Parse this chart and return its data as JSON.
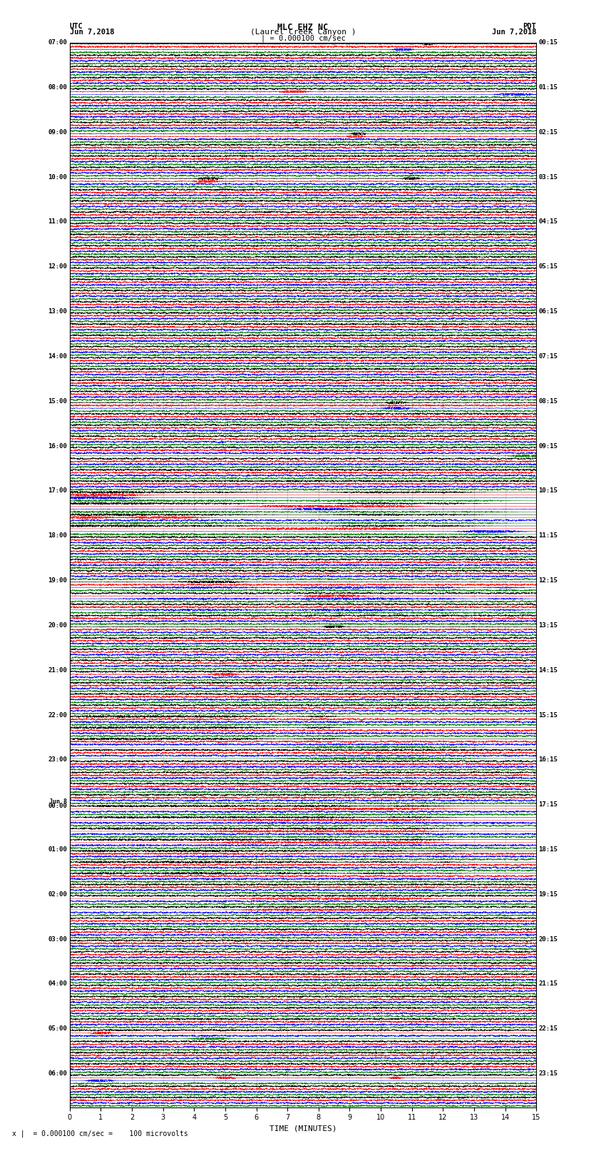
{
  "title_line1": "MLC EHZ NC",
  "title_line2": "(Laurel Creek Canyon )",
  "title_line3": "| = 0.000100 cm/sec",
  "left_label_top": "UTC",
  "left_label_date": "Jun 7,2018",
  "right_label_top": "PDT",
  "right_label_date": "Jun 7,2018",
  "bottom_label": "TIME (MINUTES)",
  "bottom_note": "x |  = 0.000100 cm/sec =    100 microvolts",
  "colors": [
    "black",
    "red",
    "blue",
    "green"
  ],
  "utc_labels": {
    "0": "07:00",
    "4": "08:00",
    "8": "09:00",
    "12": "10:00",
    "16": "11:00",
    "20": "12:00",
    "24": "13:00",
    "28": "14:00",
    "32": "15:00",
    "36": "16:00",
    "40": "17:00",
    "44": "18:00",
    "48": "19:00",
    "52": "20:00",
    "56": "21:00",
    "60": "22:00",
    "64": "23:00",
    "68": "Jun 8\n00:00",
    "72": "01:00",
    "76": "02:00",
    "80": "03:00",
    "84": "04:00",
    "88": "05:00",
    "92": "06:00"
  },
  "pdt_labels": {
    "0": "00:15",
    "4": "01:15",
    "8": "02:15",
    "12": "03:15",
    "16": "04:15",
    "20": "05:15",
    "24": "06:15",
    "28": "07:15",
    "32": "08:15",
    "36": "09:15",
    "40": "10:15",
    "44": "11:15",
    "48": "12:15",
    "52": "13:15",
    "56": "14:15",
    "60": "15:15",
    "64": "16:15",
    "68": "17:15",
    "72": "18:15",
    "76": "19:15",
    "80": "20:15",
    "84": "21:15",
    "88": "22:15",
    "92": "23:15"
  },
  "num_groups": 95,
  "traces_per_group": 4,
  "x_min": 0,
  "x_max": 15,
  "noise_seed": 42,
  "minute_line_color": "#aaaaaa",
  "bg_color": "white"
}
